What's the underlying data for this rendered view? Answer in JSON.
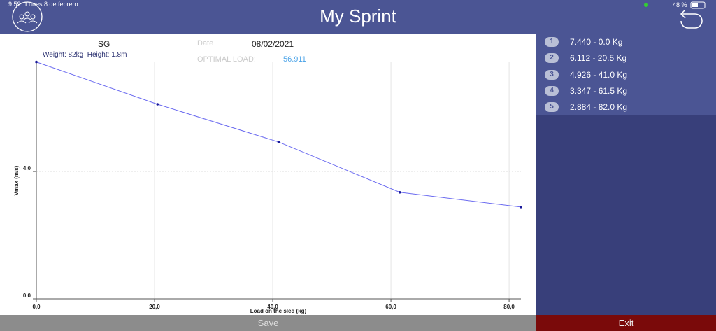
{
  "status_bar": {
    "time": "9:59",
    "date": "Lunes 8 de febrero",
    "battery": "48 %"
  },
  "header": {
    "title": "My Sprint"
  },
  "athlete": {
    "name": "SG",
    "details": "Weight: 82kg  Height: 1.8m",
    "date_label": "Date",
    "date": "08/02/2021",
    "optimal_load_label": "OPTIMAL LOAD:",
    "optimal_load": "56.911"
  },
  "chart_data": {
    "type": "line",
    "x_label": "Load on the sled (kg)",
    "y_label": "Vmax (m/s)",
    "x": [
      0,
      20.5,
      41,
      61.5,
      82
    ],
    "values": [
      7.44,
      6.112,
      4.926,
      3.347,
      2.884
    ],
    "color": "#6b6bf0",
    "marker_color": "#1a1a9a",
    "xlim": [
      0,
      82
    ],
    "xticks": [
      {
        "value": 0,
        "label": "0,0"
      },
      {
        "value": 20,
        "label": "20,0"
      },
      {
        "value": 40,
        "label": "40,0"
      },
      {
        "value": 60,
        "label": "60,0"
      },
      {
        "value": 80,
        "label": "80,0"
      }
    ],
    "ylim": [
      0,
      7.44
    ],
    "yticks": [
      {
        "value": 0,
        "label": "0,0"
      },
      {
        "value": 4,
        "label": "4,0"
      }
    ],
    "grid": true
  },
  "results": [
    {
      "number": "1",
      "label": "7.440 - 0.0 Kg"
    },
    {
      "number": "2",
      "label": "6.112 - 20.5 Kg"
    },
    {
      "number": "3",
      "label": "4.926 - 41.0 Kg"
    },
    {
      "number": "4",
      "label": "3.347 - 61.5 Kg"
    },
    {
      "number": "5",
      "label": "2.884 - 82.0 Kg"
    }
  ],
  "buttons": {
    "save": "Save",
    "exit": "Exit"
  }
}
